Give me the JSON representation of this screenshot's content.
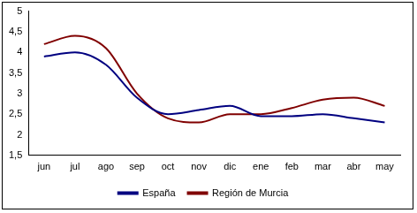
{
  "chart_data": {
    "type": "line",
    "categories": [
      "jun",
      "jul",
      "ago",
      "sep",
      "oct",
      "nov",
      "dic",
      "ene",
      "feb",
      "mar",
      "abr",
      "may"
    ],
    "series": [
      {
        "name": "España",
        "color": "#000080",
        "values": [
          3.9,
          4.0,
          3.7,
          2.9,
          2.5,
          2.6,
          2.7,
          2.45,
          2.45,
          2.5,
          2.4,
          2.3
        ]
      },
      {
        "name": "Región de Murcia",
        "color": "#800000",
        "values": [
          4.2,
          4.4,
          4.1,
          3.0,
          2.4,
          2.3,
          2.5,
          2.5,
          2.65,
          2.85,
          2.9,
          2.7
        ]
      }
    ],
    "ylim": [
      1.5,
      5
    ],
    "yticks": [
      {
        "value": 1.5,
        "label": "1,5"
      },
      2,
      {
        "value": 2.5,
        "label": "2,5"
      },
      3,
      {
        "value": 3.5,
        "label": "3,5"
      },
      4,
      {
        "value": 4.5,
        "label": "4,5"
      },
      5
    ],
    "grid": false,
    "legend": "bottom",
    "marker": "none"
  }
}
